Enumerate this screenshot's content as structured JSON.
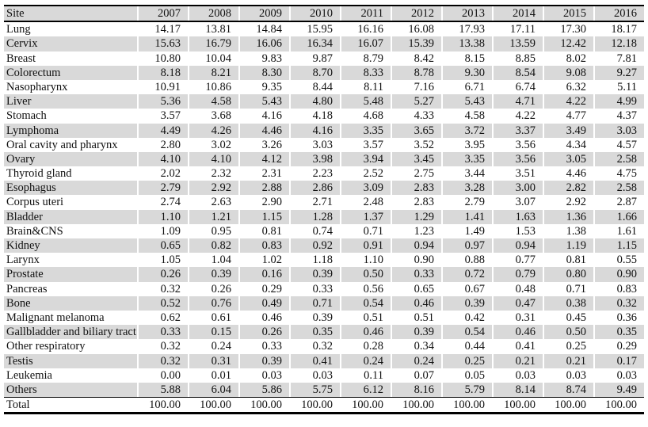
{
  "colors": {
    "stripe_gray": "#d9d9d9",
    "rule_black": "#000000",
    "background": "#ffffff",
    "text": "#111111"
  },
  "table": {
    "columns": [
      "Site",
      "2007",
      "2008",
      "2009",
      "2010",
      "2011",
      "2012",
      "2013",
      "2014",
      "2015",
      "2016"
    ],
    "rows": [
      {
        "site": "Lung",
        "values": [
          "14.17",
          "13.81",
          "14.84",
          "15.95",
          "16.16",
          "16.08",
          "17.93",
          "17.11",
          "17.30",
          "18.17"
        ]
      },
      {
        "site": "Cervix",
        "values": [
          "15.63",
          "16.79",
          "16.06",
          "16.34",
          "16.07",
          "15.39",
          "13.38",
          "13.59",
          "12.42",
          "12.18"
        ]
      },
      {
        "site": "Breast",
        "values": [
          "10.80",
          "10.04",
          "9.83",
          "9.87",
          "8.79",
          "8.42",
          "8.15",
          "8.85",
          "8.02",
          "7.81"
        ]
      },
      {
        "site": "Colorectum",
        "values": [
          "8.18",
          "8.21",
          "8.30",
          "8.70",
          "8.33",
          "8.78",
          "9.30",
          "8.54",
          "9.08",
          "9.27"
        ]
      },
      {
        "site": "Nasopharynx",
        "values": [
          "10.91",
          "10.86",
          "9.35",
          "8.44",
          "8.11",
          "7.16",
          "6.71",
          "6.74",
          "6.32",
          "5.11"
        ]
      },
      {
        "site": "Liver",
        "values": [
          "5.36",
          "4.58",
          "5.43",
          "4.80",
          "5.48",
          "5.27",
          "5.43",
          "4.71",
          "4.22",
          "4.99"
        ]
      },
      {
        "site": "Stomach",
        "values": [
          "3.57",
          "3.68",
          "4.16",
          "4.18",
          "4.68",
          "4.33",
          "4.58",
          "4.22",
          "4.77",
          "4.37"
        ]
      },
      {
        "site": "Lymphoma",
        "values": [
          "4.49",
          "4.26",
          "4.46",
          "4.16",
          "3.35",
          "3.65",
          "3.72",
          "3.37",
          "3.49",
          "3.03"
        ]
      },
      {
        "site": "Oral cavity and  pharynx",
        "values": [
          "2.80",
          "3.02",
          "3.26",
          "3.03",
          "3.57",
          "3.52",
          "3.95",
          "3.56",
          "4.34",
          "4.57"
        ]
      },
      {
        "site": "Ovary",
        "values": [
          "4.10",
          "4.10",
          "4.12",
          "3.98",
          "3.94",
          "3.45",
          "3.35",
          "3.56",
          "3.05",
          "2.58"
        ]
      },
      {
        "site": "Thyroid gland",
        "values": [
          "2.02",
          "2.32",
          "2.31",
          "2.23",
          "2.52",
          "2.75",
          "3.44",
          "3.51",
          "4.46",
          "4.75"
        ]
      },
      {
        "site": "Esophagus",
        "values": [
          "2.79",
          "2.92",
          "2.88",
          "2.86",
          "3.09",
          "2.83",
          "3.28",
          "3.00",
          "2.82",
          "2.58"
        ]
      },
      {
        "site": "Corpus uteri",
        "values": [
          "2.74",
          "2.63",
          "2.90",
          "2.71",
          "2.48",
          "2.83",
          "2.79",
          "3.07",
          "2.92",
          "2.87"
        ]
      },
      {
        "site": "Bladder",
        "values": [
          "1.10",
          "1.21",
          "1.15",
          "1.28",
          "1.37",
          "1.29",
          "1.41",
          "1.63",
          "1.36",
          "1.66"
        ]
      },
      {
        "site": "Brain&CNS",
        "values": [
          "1.09",
          "0.95",
          "0.81",
          "0.74",
          "0.71",
          "1.23",
          "1.49",
          "1.53",
          "1.38",
          "1.61"
        ]
      },
      {
        "site": "Kidney",
        "values": [
          "0.65",
          "0.82",
          "0.83",
          "0.92",
          "0.91",
          "0.94",
          "0.97",
          "0.94",
          "1.19",
          "1.15"
        ]
      },
      {
        "site": "Larynx",
        "values": [
          "1.05",
          "1.04",
          "1.02",
          "1.18",
          "1.10",
          "0.90",
          "0.88",
          "0.77",
          "0.81",
          "0.55"
        ]
      },
      {
        "site": "Prostate",
        "values": [
          "0.26",
          "0.39",
          "0.16",
          "0.39",
          "0.50",
          "0.33",
          "0.72",
          "0.79",
          "0.80",
          "0.90"
        ]
      },
      {
        "site": "Pancreas",
        "values": [
          "0.32",
          "0.26",
          "0.29",
          "0.33",
          "0.56",
          "0.65",
          "0.67",
          "0.48",
          "0.71",
          "0.83"
        ]
      },
      {
        "site": "Bone",
        "values": [
          "0.52",
          "0.76",
          "0.49",
          "0.71",
          "0.54",
          "0.46",
          "0.39",
          "0.47",
          "0.38",
          "0.32"
        ]
      },
      {
        "site": "Malignant melanoma",
        "values": [
          "0.62",
          "0.61",
          "0.46",
          "0.39",
          "0.51",
          "0.51",
          "0.42",
          "0.31",
          "0.45",
          "0.36"
        ]
      },
      {
        "site": "Gallbladder and biliary tract",
        "values": [
          "0.33",
          "0.15",
          "0.26",
          "0.35",
          "0.46",
          "0.39",
          "0.54",
          "0.46",
          "0.50",
          "0.35"
        ]
      },
      {
        "site": "Other respiratory",
        "values": [
          "0.32",
          "0.24",
          "0.33",
          "0.32",
          "0.28",
          "0.34",
          "0.44",
          "0.41",
          "0.25",
          "0.29"
        ]
      },
      {
        "site": "Testis",
        "values": [
          "0.32",
          "0.31",
          "0.39",
          "0.41",
          "0.24",
          "0.24",
          "0.25",
          "0.21",
          "0.21",
          "0.17"
        ]
      },
      {
        "site": "Leukemia",
        "values": [
          "0.00",
          "0.01",
          "0.03",
          "0.03",
          "0.11",
          "0.07",
          "0.05",
          "0.03",
          "0.03",
          "0.03"
        ]
      },
      {
        "site": "Others",
        "values": [
          "5.88",
          "6.04",
          "5.86",
          "5.75",
          "6.12",
          "8.16",
          "5.79",
          "8.14",
          "8.74",
          "9.49"
        ]
      },
      {
        "site": "Total",
        "values": [
          "100.00",
          "100.00",
          "100.00",
          "100.00",
          "100.00",
          "100.00",
          "100.00",
          "100.00",
          "100.00",
          "100.00"
        ]
      }
    ]
  }
}
